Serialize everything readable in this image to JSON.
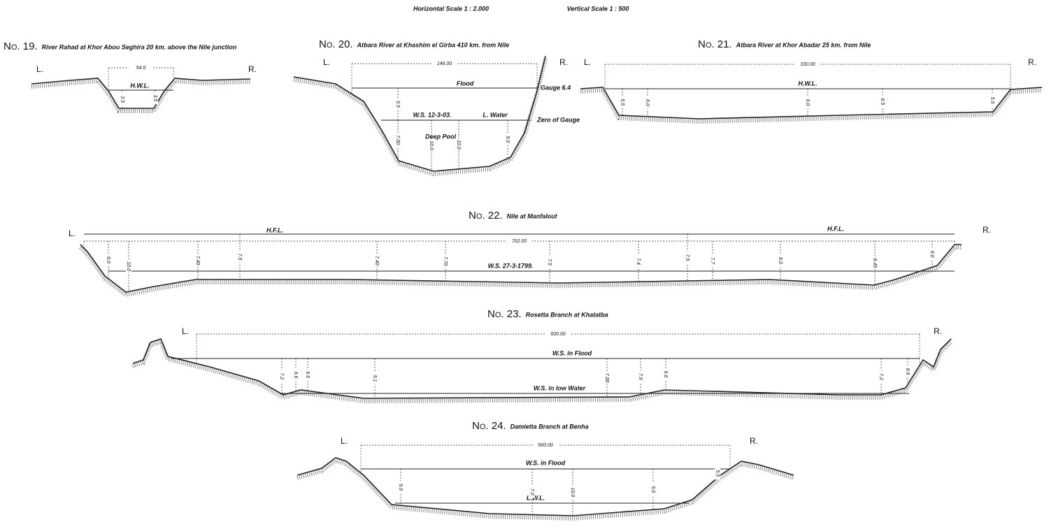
{
  "header": {
    "horizontal_scale": "Horizontal Scale  1 : 2.000",
    "vertical_scale": "Vertical Scale  1 : 500"
  },
  "sections": [
    {
      "number": "No. 19.",
      "title": "River Rahad at Khor Abou Seghira 20 km. above the Nile junction",
      "left_bank": "L.",
      "right_bank": "R.",
      "width": "54.0",
      "labels": [
        "H.W.L."
      ],
      "depths": [
        "3.5",
        "3.5"
      ]
    },
    {
      "number": "No. 20.",
      "title": "Atbara River at Khashim el Girba 410 km. from Nile",
      "left_bank": "L.",
      "right_bank": "R.",
      "width": "146.00",
      "labels": [
        "Flood",
        "Gauge 6.4",
        "W.S. 12-3-03.",
        "L. Water",
        "Zero of Gauge",
        "Deep Pool"
      ],
      "depths": [
        "6.5",
        "7.00",
        "10.0",
        "10.0",
        "9.0"
      ]
    },
    {
      "number": "No. 21.",
      "title": "Atbara River at Khor Abadar 25 km. from Nile",
      "left_bank": "L.",
      "right_bank": "R.",
      "width": "330.00",
      "labels": [
        "H.W.L."
      ],
      "depths": [
        "5.5",
        "6.0",
        "6.0",
        "6.5",
        "5.5"
      ]
    },
    {
      "number": "No. 22.",
      "title": "Nile at Manfalout",
      "left_bank": "L.",
      "right_bank": "R.",
      "width": "702.00",
      "labels": [
        "H.F.L.",
        "H.F.L.",
        "W.S. 27-3-1799."
      ],
      "depths": [
        "6.0",
        "10.0",
        "7.40",
        "7.5",
        "7.40",
        "7.70",
        "7.5",
        "7.4",
        "7.5",
        "7.7",
        "8.0",
        "8.45",
        "6.0"
      ]
    },
    {
      "number": "No. 23.",
      "title": "Rosetta Branch at Khatatba",
      "left_bank": "L.",
      "right_bank": "R.",
      "width": "600.00",
      "labels": [
        "W.S. in Flood",
        "W.S. in low Water"
      ],
      "depths": [
        "7.2",
        "6.6",
        "6.6",
        "9.1",
        "7.00",
        "7.6",
        "6.6",
        "7.2",
        "6.6"
      ]
    },
    {
      "number": "No. 24.",
      "title": "Damietta Branch at Benha",
      "left_bank": "L.",
      "right_bank": "R.",
      "width": "500.00",
      "labels": [
        "W.S. in Flood",
        "L.W.L."
      ],
      "depths": [
        "6.0",
        "7.0",
        "10.0",
        "9.0",
        "5.5"
      ]
    }
  ]
}
